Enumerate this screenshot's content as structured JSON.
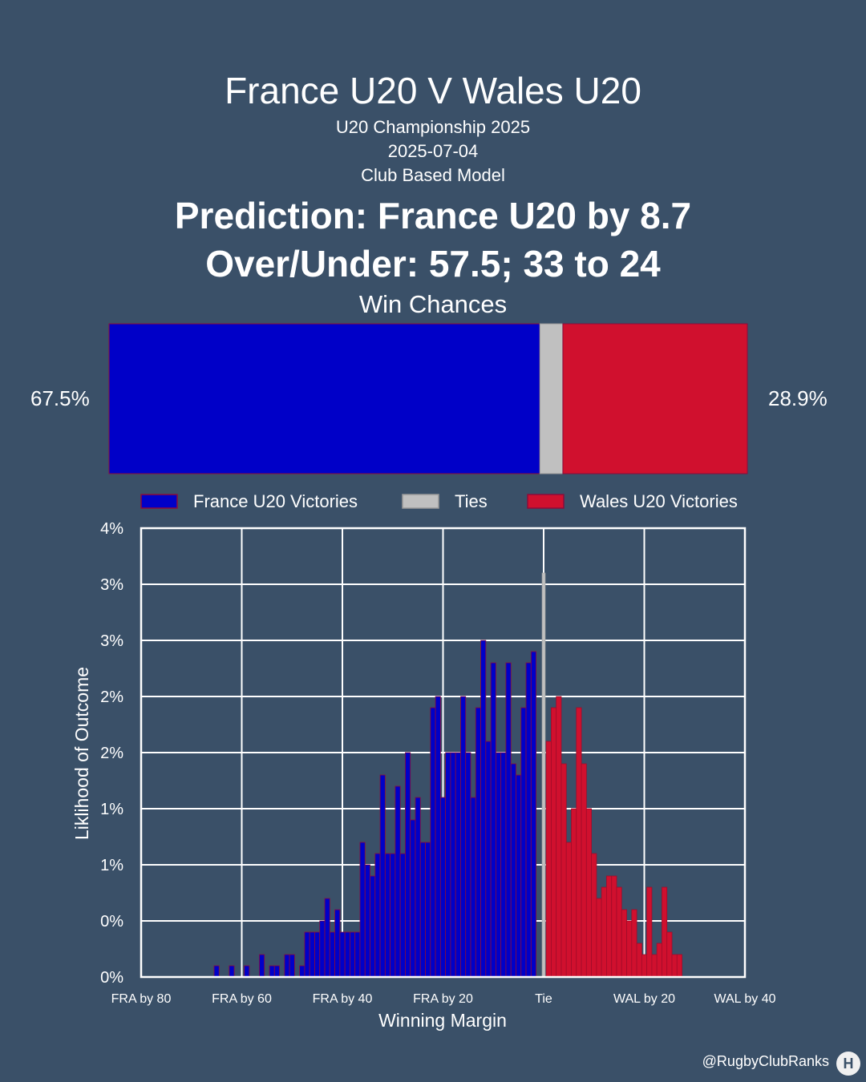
{
  "header": {
    "title": "France U20 V Wales U20",
    "competition": "U20 Championship 2025",
    "date": "2025-07-04",
    "model": "Club Based Model",
    "prediction": "Prediction: France U20 by 8.7",
    "over_under": "Over/Under: 57.5; 33 to 24"
  },
  "win_chances": {
    "label": "Win Chances",
    "france_pct": 67.5,
    "tie_pct": 3.6,
    "wales_pct": 28.9,
    "france_text": "67.5%",
    "wales_text": "28.9%"
  },
  "colors": {
    "background": "#3a5068",
    "france": "#0000c8",
    "france_edge": "#8a0c3a",
    "tie": "#c0c0c0",
    "wales": "#d0102e"
  },
  "legend": {
    "items": [
      {
        "label": "France U20 Victories",
        "color": "#0000c8"
      },
      {
        "label": "Ties",
        "color": "#c0c0c0"
      },
      {
        "label": "Wales U20 Victories",
        "color": "#d0102e"
      }
    ],
    "placement": "top"
  },
  "chart_data": {
    "type": "bar",
    "xlabel": "Winning Margin",
    "ylabel": "Liklihood of Outcome",
    "xlim": [
      -80,
      40
    ],
    "ylim": [
      0,
      4
    ],
    "grid": true,
    "x_ticks": [
      {
        "value": -80,
        "label": "FRA by 80"
      },
      {
        "value": -60,
        "label": "FRA by 60"
      },
      {
        "value": -40,
        "label": "FRA by 40"
      },
      {
        "value": -20,
        "label": "FRA by 20"
      },
      {
        "value": 0,
        "label": "Tie"
      },
      {
        "value": 20,
        "label": "WAL by 20"
      },
      {
        "value": 40,
        "label": "WAL by 40"
      }
    ],
    "y_ticks": [
      {
        "value": 0,
        "label": "0%"
      },
      {
        "value": 0.5,
        "label": "0%"
      },
      {
        "value": 1.0,
        "label": "1%"
      },
      {
        "value": 1.5,
        "label": "1%"
      },
      {
        "value": 2.0,
        "label": "2%"
      },
      {
        "value": 2.5,
        "label": "2%"
      },
      {
        "value": 3.0,
        "label": "3%"
      },
      {
        "value": 3.5,
        "label": "3%"
      },
      {
        "value": 4.0,
        "label": "4%"
      }
    ],
    "series": [
      {
        "name": "France U20 Victories",
        "x": [
          -65,
          -62,
          -59,
          -56,
          -54,
          -53,
          -51,
          -50,
          -48,
          -47,
          -46,
          -45,
          -44,
          -43,
          -42,
          -41,
          -40,
          -39,
          -38,
          -37,
          -36,
          -35,
          -34,
          -33,
          -32,
          -31,
          -30,
          -29,
          -28,
          -27,
          -26,
          -25,
          -24,
          -23,
          -22,
          -21,
          -20,
          -19,
          -18,
          -17,
          -16,
          -15,
          -14,
          -13,
          -12,
          -11,
          -10,
          -9,
          -8,
          -7,
          -6,
          -5,
          -4,
          -3,
          -2,
          -1
        ],
        "values": [
          0.1,
          0.1,
          0.1,
          0.2,
          0.1,
          0.1,
          0.2,
          0.2,
          0.1,
          0.4,
          0.4,
          0.4,
          0.5,
          0.7,
          0.4,
          0.6,
          0.4,
          0.4,
          0.4,
          0.4,
          1.2,
          1.0,
          0.9,
          1.1,
          1.8,
          1.1,
          1.1,
          1.7,
          1.1,
          2.0,
          1.4,
          1.6,
          1.2,
          1.2,
          2.4,
          2.5,
          1.6,
          2.0,
          2.0,
          2.0,
          2.5,
          2.0,
          1.6,
          2.4,
          3.0,
          2.1,
          2.8,
          2.0,
          2.0,
          2.8,
          1.9,
          1.8,
          2.4,
          2.8,
          2.9,
          0
        ]
      },
      {
        "name": "Ties",
        "x": [
          0
        ],
        "values": [
          3.6
        ]
      },
      {
        "name": "Wales U20 Victories",
        "x": [
          1,
          2,
          3,
          4,
          5,
          6,
          7,
          8,
          9,
          10,
          11,
          12,
          13,
          14,
          15,
          16,
          17,
          18,
          19,
          20,
          21,
          22,
          23,
          24,
          25,
          26,
          27
        ],
        "values": [
          2.1,
          2.4,
          2.5,
          1.9,
          1.2,
          1.5,
          2.4,
          1.9,
          1.5,
          1.1,
          0.7,
          0.8,
          0.9,
          0.9,
          0.8,
          0.6,
          0.5,
          0.6,
          0.3,
          0.2,
          0.8,
          0.2,
          0.3,
          0.8,
          0.4,
          0.2,
          0.2
        ]
      }
    ]
  },
  "footer": {
    "handle": "@RugbyClubRanks",
    "logo_letter": "H"
  }
}
